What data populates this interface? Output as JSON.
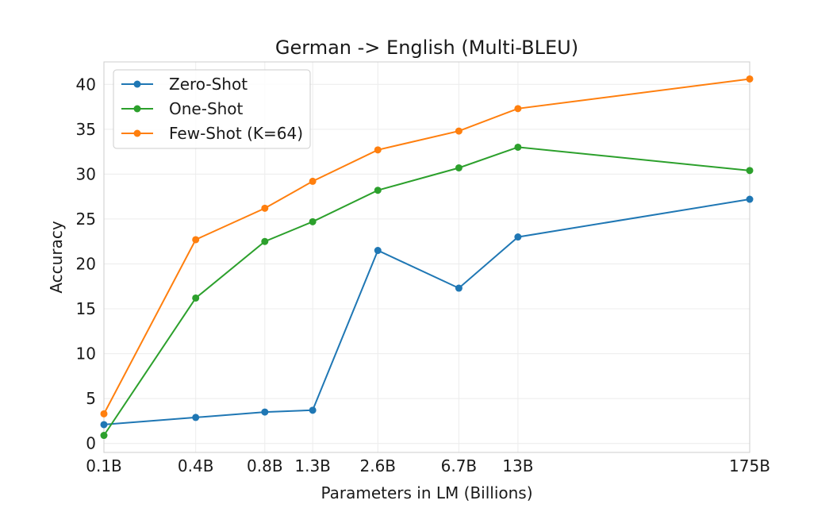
{
  "chart_data": {
    "type": "line",
    "title": "German -> English (Multi-BLEU)",
    "xlabel": "Parameters in LM (Billions)",
    "ylabel": "Accuracy",
    "categories": [
      "0.1B",
      "0.4B",
      "0.8B",
      "1.3B",
      "2.6B",
      "6.7B",
      "13B",
      "175B"
    ],
    "x": [
      0.125,
      0.35,
      0.76,
      1.3,
      2.7,
      6.7,
      13,
      175
    ],
    "x_scale": "log",
    "ylim": [
      -1,
      42.5
    ],
    "yticks": [
      0,
      5,
      10,
      15,
      20,
      25,
      30,
      35,
      40
    ],
    "grid": true,
    "legend_position": "top-left",
    "series": [
      {
        "name": "Zero-Shot",
        "color": "#1f77b4",
        "values": [
          2.1,
          2.9,
          3.5,
          3.7,
          21.5,
          17.3,
          23.0,
          27.2
        ]
      },
      {
        "name": "One-Shot",
        "color": "#2ca02c",
        "values": [
          0.9,
          16.2,
          22.5,
          24.7,
          28.2,
          30.7,
          33.0,
          30.4
        ]
      },
      {
        "name": "Few-Shot (K=64)",
        "color": "#ff7f0e",
        "values": [
          3.3,
          22.7,
          26.2,
          29.2,
          32.7,
          34.8,
          37.3,
          40.6
        ]
      }
    ]
  }
}
